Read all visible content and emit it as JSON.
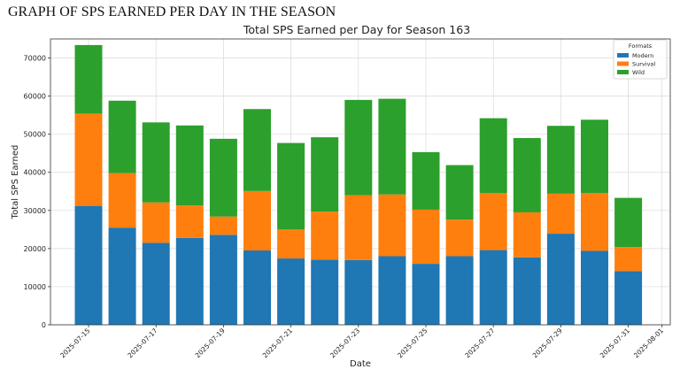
{
  "heading": "GRAPH OF SPS EARNED PER DAY IN THE SEASON",
  "chart_data": {
    "type": "bar",
    "stacked": true,
    "title": "Total SPS Earned per Day for Season 163",
    "xlabel": "Date",
    "ylabel": "Total SPS Earned",
    "ylim": [
      0,
      75000
    ],
    "yticks": [
      0,
      10000,
      20000,
      30000,
      40000,
      50000,
      60000,
      70000
    ],
    "xticks": [
      "2025-07-15",
      "2025-07-17",
      "2025-07-19",
      "2025-07-21",
      "2025-07-23",
      "2025-07-25",
      "2025-07-27",
      "2025-07-29",
      "2025-07-31",
      "2025-08-01"
    ],
    "categories": [
      "2025-07-15",
      "2025-07-16",
      "2025-07-17",
      "2025-07-18",
      "2025-07-19",
      "2025-07-20",
      "2025-07-21",
      "2025-07-22",
      "2025-07-23",
      "2025-07-24",
      "2025-07-25",
      "2025-07-26",
      "2025-07-27",
      "2025-07-28",
      "2025-07-29",
      "2025-07-30",
      "2025-07-31"
    ],
    "series": [
      {
        "name": "Modern",
        "color": "#1f77b4",
        "values": [
          31200,
          25500,
          21500,
          22800,
          23600,
          19500,
          17400,
          17100,
          17000,
          18000,
          16000,
          18000,
          19600,
          17700,
          23900,
          19400,
          14100
        ]
      },
      {
        "name": "Survival",
        "color": "#ff7f0e",
        "values": [
          24200,
          14300,
          10600,
          8500,
          4800,
          15600,
          7600,
          12600,
          17000,
          16200,
          14200,
          9600,
          15000,
          11800,
          10500,
          15200,
          6300
        ]
      },
      {
        "name": "Wild",
        "color": "#2ca02c",
        "values": [
          18000,
          19000,
          21000,
          21000,
          20400,
          21500,
          22700,
          19500,
          25000,
          25100,
          15100,
          14300,
          19600,
          19500,
          17800,
          19200,
          12900
        ]
      }
    ],
    "legend": {
      "title": "Formats",
      "placement": "top-right"
    },
    "grid": true
  }
}
